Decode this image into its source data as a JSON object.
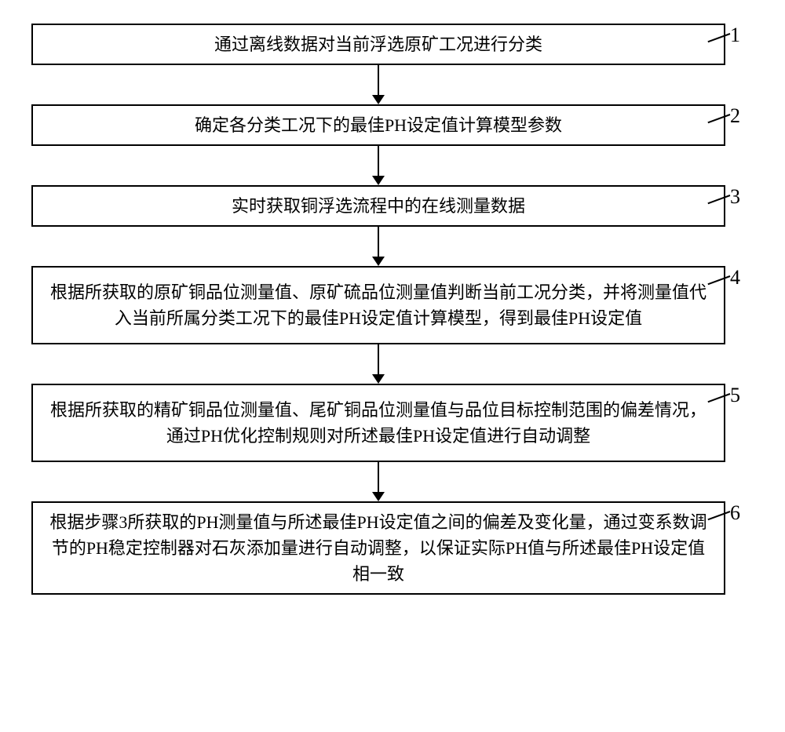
{
  "flowchart": {
    "type": "flowchart",
    "direction": "vertical",
    "box_border_color": "#000000",
    "box_border_width": 2,
    "box_background": "#ffffff",
    "text_color": "#000000",
    "font_family": "SimSun",
    "font_size": 22,
    "number_font_size": 26,
    "arrow_color": "#000000",
    "arrow_head_size": 12,
    "arrow_line_width": 2,
    "steps": [
      {
        "number": "1",
        "text": "通过离线数据对当前浮选原矿工况进行分类",
        "height_class": "short"
      },
      {
        "number": "2",
        "text": "确定各分类工况下的最佳PH设定值计算模型参数",
        "height_class": "short"
      },
      {
        "number": "3",
        "text": "实时获取铜浮选流程中的在线测量数据",
        "height_class": "short"
      },
      {
        "number": "4",
        "text": "根据所获取的原矿铜品位测量值、原矿硫品位测量值判断当前工况分类，并将测量值代入当前所属分类工况下的最佳PH设定值计算模型，得到最佳PH设定值",
        "height_class": "tall"
      },
      {
        "number": "5",
        "text": "根据所获取的精矿铜品位测量值、尾矿铜品位测量值与品位目标控制范围的偏差情况，通过PH优化控制规则对所述最佳PH设定值进行自动调整",
        "height_class": "tall"
      },
      {
        "number": "6",
        "text": "根据步骤3所获取的PH测量值与所述最佳PH设定值之间的偏差及变化量，通过变系数调节的PH稳定控制器对石灰添加量进行自动调整，以保证实际PH值与所述最佳PH设定值相一致",
        "height_class": "tall"
      }
    ]
  }
}
